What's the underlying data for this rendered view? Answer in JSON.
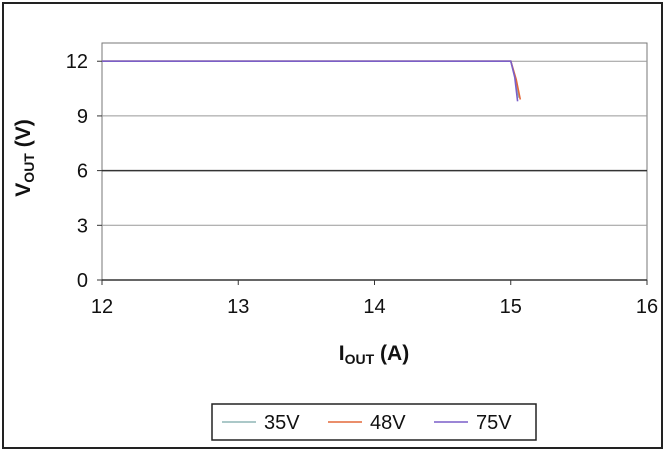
{
  "chart_data": {
    "type": "line",
    "title": "",
    "xlabel": {
      "main": "I",
      "sub": "OUT",
      "unit": " (A)"
    },
    "ylabel": {
      "main": "V",
      "sub": "OUT",
      "unit": " (V)"
    },
    "xlim": [
      12,
      16
    ],
    "ylim": [
      0,
      13
    ],
    "xticks": [
      12,
      13,
      14,
      15,
      16
    ],
    "yticks": [
      0,
      3,
      6,
      9,
      12
    ],
    "grid": "horizontal",
    "legend_position": "bottom",
    "series": [
      {
        "name": "35V",
        "color": "#8fb6b6",
        "x": [
          12,
          15.0,
          15.03,
          15.06
        ],
        "y": [
          12,
          12,
          11.2,
          10.0
        ]
      },
      {
        "name": "48V",
        "color": "#e3683a",
        "x": [
          12,
          15.0,
          15.04,
          15.07
        ],
        "y": [
          12,
          12,
          11.0,
          9.9
        ]
      },
      {
        "name": "75V",
        "color": "#7a5fc8",
        "x": [
          12,
          15.0,
          15.03,
          15.05
        ],
        "y": [
          12,
          12,
          11.1,
          9.8
        ]
      }
    ]
  }
}
